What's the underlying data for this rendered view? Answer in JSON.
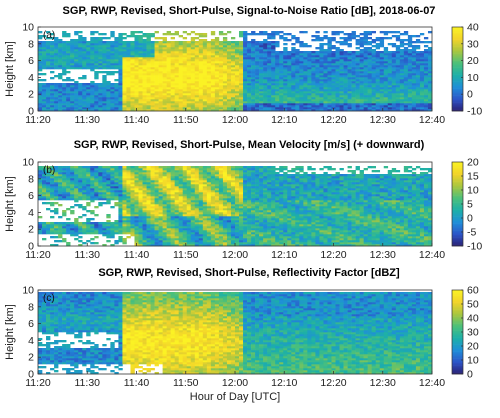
{
  "chart_data": [
    {
      "type": "heatmap",
      "title": "SGP, RWP, Revised, Short-Pulse, Signal-to-Noise Ratio [dB], 2018-06-07",
      "panel_label": "(a)",
      "ylabel": "Height [km]",
      "xlabel": "",
      "x_ticks": [
        "11:20",
        "11:30",
        "11:40",
        "11:50",
        "12:00",
        "12:10",
        "12:20",
        "12:30",
        "12:40"
      ],
      "y_ticks": [
        "0",
        "2",
        "4",
        "6",
        "8",
        "10"
      ],
      "xlim": [
        "11:20",
        "12:40"
      ],
      "ylim": [
        0,
        10
      ],
      "colorbar": {
        "ticks": [
          "-10",
          "0",
          "10",
          "20",
          "30",
          "40"
        ],
        "range": [
          -10,
          40
        ]
      },
      "colormap": [
        "#2b1f72",
        "#2c55c8",
        "#1f8fd8",
        "#1db0a8",
        "#4cc07a",
        "#a8c640",
        "#f2d32a",
        "#fbf224"
      ]
    },
    {
      "type": "heatmap",
      "title": "SGP, RWP, Revised, Short-Pulse, Mean Velocity [m/s] (+ downward)",
      "panel_label": "(b)",
      "ylabel": "Height [km]",
      "xlabel": "",
      "x_ticks": [
        "11:20",
        "11:30",
        "11:40",
        "11:50",
        "12:00",
        "12:10",
        "12:20",
        "12:30",
        "12:40"
      ],
      "y_ticks": [
        "0",
        "2",
        "4",
        "6",
        "8",
        "10"
      ],
      "xlim": [
        "11:20",
        "12:40"
      ],
      "ylim": [
        0,
        10
      ],
      "colorbar": {
        "ticks": [
          "-10",
          "-5",
          "0",
          "5",
          "10",
          "15",
          "20"
        ],
        "range": [
          -10,
          20
        ]
      },
      "colormap": [
        "#2b1f72",
        "#2c55c8",
        "#1f8fd8",
        "#1db0a8",
        "#4cc07a",
        "#a8c640",
        "#f2d32a",
        "#fbf224"
      ]
    },
    {
      "type": "heatmap",
      "title": "SGP, RWP, Revised, Short-Pulse, Reflectivity Factor [dBZ]",
      "panel_label": "(c)",
      "ylabel": "Height [km]",
      "xlabel": "Hour of Day [UTC]",
      "x_ticks": [
        "11:20",
        "11:30",
        "11:40",
        "11:50",
        "12:00",
        "12:10",
        "12:20",
        "12:30",
        "12:40"
      ],
      "y_ticks": [
        "0",
        "2",
        "4",
        "6",
        "8",
        "10"
      ],
      "xlim": [
        "11:20",
        "12:40"
      ],
      "ylim": [
        0,
        10
      ],
      "colorbar": {
        "ticks": [
          "0",
          "10",
          "20",
          "30",
          "40",
          "50",
          "60"
        ],
        "range": [
          0,
          60
        ]
      },
      "colormap": [
        "#2b1f72",
        "#2c55c8",
        "#1f8fd8",
        "#1db0a8",
        "#4cc07a",
        "#a8c640",
        "#f2d32a",
        "#fbf224"
      ]
    }
  ]
}
